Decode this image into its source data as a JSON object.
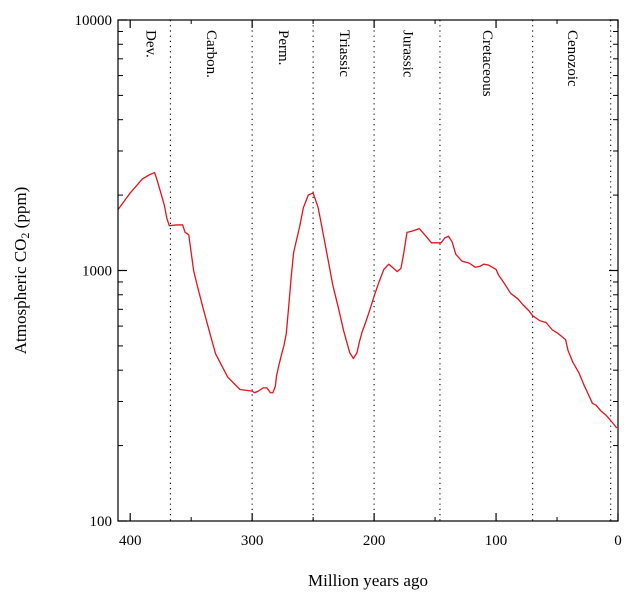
{
  "chart_data": {
    "type": "line",
    "title": "",
    "xlabel": "Million years ago",
    "ylabel": {
      "text": "Atmospheric CO",
      "sub": "2",
      "unit": " (ppm)"
    },
    "xlim": [
      410,
      0
    ],
    "ylim": [
      100,
      10000
    ],
    "yscale": "log",
    "grid": false,
    "x_ticks": [
      400,
      300,
      200,
      100,
      0
    ],
    "x_tick_labels": [
      "400",
      "300",
      "200",
      "100",
      "0"
    ],
    "y_ticks": [
      100,
      1000,
      10000
    ],
    "y_tick_labels": [
      "100",
      "1000",
      "10000"
    ],
    "line_color": "#e0141e",
    "period_boundaries": [
      367,
      300,
      250,
      200,
      146,
      70,
      6
    ],
    "periods": [
      {
        "label": "Dev.",
        "x": 384
      },
      {
        "label": "Carbon.",
        "x": 334
      },
      {
        "label": "Perm.",
        "x": 275
      },
      {
        "label": "Triassic",
        "x": 225
      },
      {
        "label": "Jurassic",
        "x": 173
      },
      {
        "label": "Cretaceous",
        "x": 108
      },
      {
        "label": "Cenozoic",
        "x": 38
      }
    ],
    "series": [
      {
        "x": [
          410,
          400,
          390,
          385,
          380,
          378,
          375,
          372,
          370,
          368,
          362,
          357,
          355,
          352,
          350,
          348,
          345,
          340,
          335,
          330,
          320,
          310,
          300,
          298,
          295,
          291,
          288,
          285,
          283,
          281,
          280,
          278,
          276,
          274,
          272,
          270,
          268,
          266,
          264,
          261,
          258,
          254,
          250,
          248,
          246,
          244,
          242,
          238,
          234,
          229,
          225,
          220,
          217,
          214,
          212,
          210,
          207,
          204,
          200,
          196,
          192,
          188,
          184,
          181,
          178,
          176,
          173,
          168,
          163,
          158,
          153,
          149,
          145,
          142,
          139,
          136,
          133,
          128,
          122,
          117,
          113,
          110,
          106,
          103,
          100,
          98,
          94,
          88,
          82,
          78,
          73,
          70,
          64,
          59,
          54,
          49,
          43,
          41,
          37,
          32,
          28,
          23,
          21,
          18,
          14,
          10,
          7,
          4,
          1
        ],
        "y": [
          1750,
          2040,
          2320,
          2400,
          2460,
          2300,
          2050,
          1820,
          1620,
          1510,
          1520,
          1520,
          1420,
          1390,
          1180,
          1000,
          870,
          700,
          570,
          465,
          375,
          335,
          330,
          325,
          330,
          340,
          340,
          325,
          325,
          345,
          380,
          420,
          460,
          500,
          560,
          720,
          940,
          1180,
          1300,
          1500,
          1780,
          2000,
          2040,
          1910,
          1790,
          1600,
          1420,
          1120,
          880,
          700,
          575,
          470,
          445,
          470,
          520,
          565,
          620,
          685,
          790,
          900,
          1010,
          1060,
          1020,
          990,
          1020,
          1150,
          1420,
          1440,
          1470,
          1380,
          1290,
          1290,
          1290,
          1350,
          1370,
          1300,
          1160,
          1090,
          1070,
          1030,
          1040,
          1060,
          1050,
          1030,
          1010,
          960,
          900,
          810,
          770,
          730,
          690,
          660,
          630,
          620,
          580,
          560,
          530,
          480,
          430,
          390,
          350,
          310,
          295,
          290,
          275,
          265,
          255,
          245,
          235
        ]
      }
    ]
  }
}
